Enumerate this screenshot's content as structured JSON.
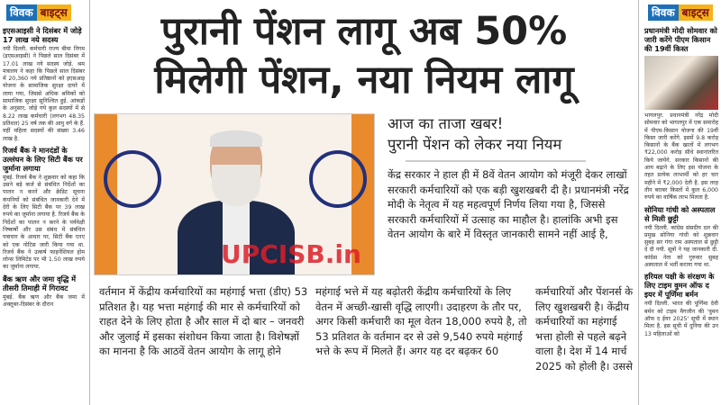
{
  "headline": {
    "line1": "पुरानी पेंशन लागू अब 50%",
    "line2": "मिलेगी पेंशन, नया नियम लागू"
  },
  "subheading": {
    "line1": "आज का ताजा खबर!",
    "line2": "पुरानी पेंशन को लेकर नया नियम"
  },
  "intro": "केंद्र सरकार ने हाल ही में 8वें वेतन आयोग को मंजूरी देकर लाखों सरकारी कर्मचारियों को एक बड़ी खुशखबरी दी है। प्रधानमंत्री नरेंद्र मोदी के नेतृत्व में यह महत्वपूर्ण निर्णय लिया गया है, जिससे सरकारी कर्मचारियों में उत्साह का माहौल है। हालांकि अभी इस वेतन आयोग के बारे में विस्तृत जानकारी सामने नहीं आई है,",
  "columns": [
    "वर्तमान में केंद्रीय कर्मचारियों का महंगाई भत्ता (डीए) 53 प्रतिशत है। यह भत्ता महंगाई की मार से कर्मचारियों को राहत देने के लिए होता है और साल में दो बार – जनवरी और जुलाई में इसका संशोधन किया जाता है। विशेषज्ञों का मानना है कि आठवें वेतन आयोग के लागू होने",
    "महंगाई भत्ते में यह बढ़ोतरी केंद्रीय कर्मचारियों के लिए वेतन में अच्छी-खासी वृद्धि लाएगी। उदाहरण के तौर पर, अगर किसी कर्मचारी का मूल वेतन 18,000 रुपये है, तो 53 प्रतिशत के वर्तमान दर से उसे 9,540 रुपये महंगाई भत्ते के रूप में मिलते हैं। अगर यह दर बढ़कर 60",
    "कर्मचारियों और पेंशनर्स के लिए खुशखबरी है। केंद्रीय कर्मचारियों का महंगाई भत्ता होली से पहले बढ़ने वाला है। देश में 14 मार्च 2025 को होली है। उससे"
  ],
  "watermark": "UPCISB.in",
  "brand": {
    "part1": "विवक",
    "part2": "बाइट्स"
  },
  "left": [
    {
      "title": "इएसआइसी ने दिसंबर में जोड़े 17 लाख नये सदस्य",
      "text": "नयी दिल्ली. कर्मचारी राज्य बीमा निगम (इएसआइसी) ने पिछले साल दिसंबर में 17.01 लाख नये सदस्य जोड़े. श्रम मंत्रालय ने कहा कि पिछले साल दिसंबर में 20,360 नये प्रतिष्ठानों को इएसआइ योजना के सामाजिक सुरक्षा दायरे में लाया गया, जिससे अधिक श्रमिकों को सामाजिक सुरक्षा सुनिश्चित हुई. आंकड़ों के अनुसार, जोड़े गये कुल सदस्यों में से 8.22 लाख कर्मचारी (लगभग 48.35 प्रतिशत) 25 वर्ष तक की आयु वर्ग के हैं. वहीं महिला सदस्यों की संख्या 3.46 लाख है."
    },
    {
      "title": "रिजर्व बैंक ने मानदंडों के उल्लंघन के लिए सिटी बैंक पर जुर्माना लगाया",
      "text": "मुंबई. रिजर्व बैंक ने शुक्रवार को कहा कि उसने बड़े कर्ज से संबंधित निर्देशों का पालन न करने और क्रेडिट सूचना कंपनियों को संबंधित जानकारी देने में देरी के लिए सिटी बैंक पर 39 लाख रुपये का जुर्माना लगाया है. रिजर्व बैंक के निर्देशों का पालन न करने के पर्यवेक्षी निष्कर्षों और उस संबंध में संबंधित पत्राचार के आधार पर, सिटी बैंक एनए को एक नोटिस जारी किया गया था. रिजर्व बैंक ने उत्कर्ष फाइनेंशियल होम लोन्स लिमिटेड पर भी 1.50 लाख रुपये का जुर्माना लगाया."
    },
    {
      "title": "बैंक ऋण और जमा वृद्धि में तीसरी तिमाही में गिरावट",
      "text": "मुंबई. बैंक ऋण और बैंक जमा में अक्तूबर-दिसंबर के दौरान"
    }
  ],
  "right": [
    {
      "title": "प्रधानमंत्री मोदी सोमवार को जारी करेंगे पीएम किसान की 19वीं किस्त",
      "text": "भागलपुर. प्रधानमंत्री नरेंद्र मोदी सोमवार को भागलपुर में एक समारोह में पीएम-किसान योजना की 19वीं किस्त जारी करेंगे. इसमें 9.8 करोड़ किसानों के बैंक खातों में लगभग ₹22,000 करोड़ सीधे स्थानांतरित किये जायेंगे. सरकार किसानों की आय बढ़ाने के लिए इस योजना के तहत प्रत्येक लाभार्थी को हर चार महीने में ₹2,000 देती है. इस तरह तीन बराबर किस्तों में कुल 6,000 रुपये का वार्षिक लाभ मिलता है."
    },
    {
      "title": "सोनिया गांधी को अस्पताल से मिली छुट्टी",
      "text": "नयी दिल्ली. कांग्रेस संसदीय दल की प्रमुख सोनिया गांधी को शुक्रवार सुबह सर गंगा राम अस्पताल से छुट्टी दे दी गयी. सूत्रों ने यह जानकारी दी. कांग्रेस नेता को गुरुवार सुबह अस्पताल में भर्ती कराया गया था."
    },
    {
      "title": "हरियल पक्षी के संरक्षण के लिए टाइम वुमन ऑफ द इयर में पूर्णिमा बर्मन",
      "text": "नयी दिल्ली. भारत की पूर्णिमा देवी बर्मन को टाइम मैगजीन की 'वुमन ऑफ द ईयर 2025' सूची में स्थान मिला है. इस सूची में दुनिया की उन 13 महिलाओं को"
    }
  ]
}
